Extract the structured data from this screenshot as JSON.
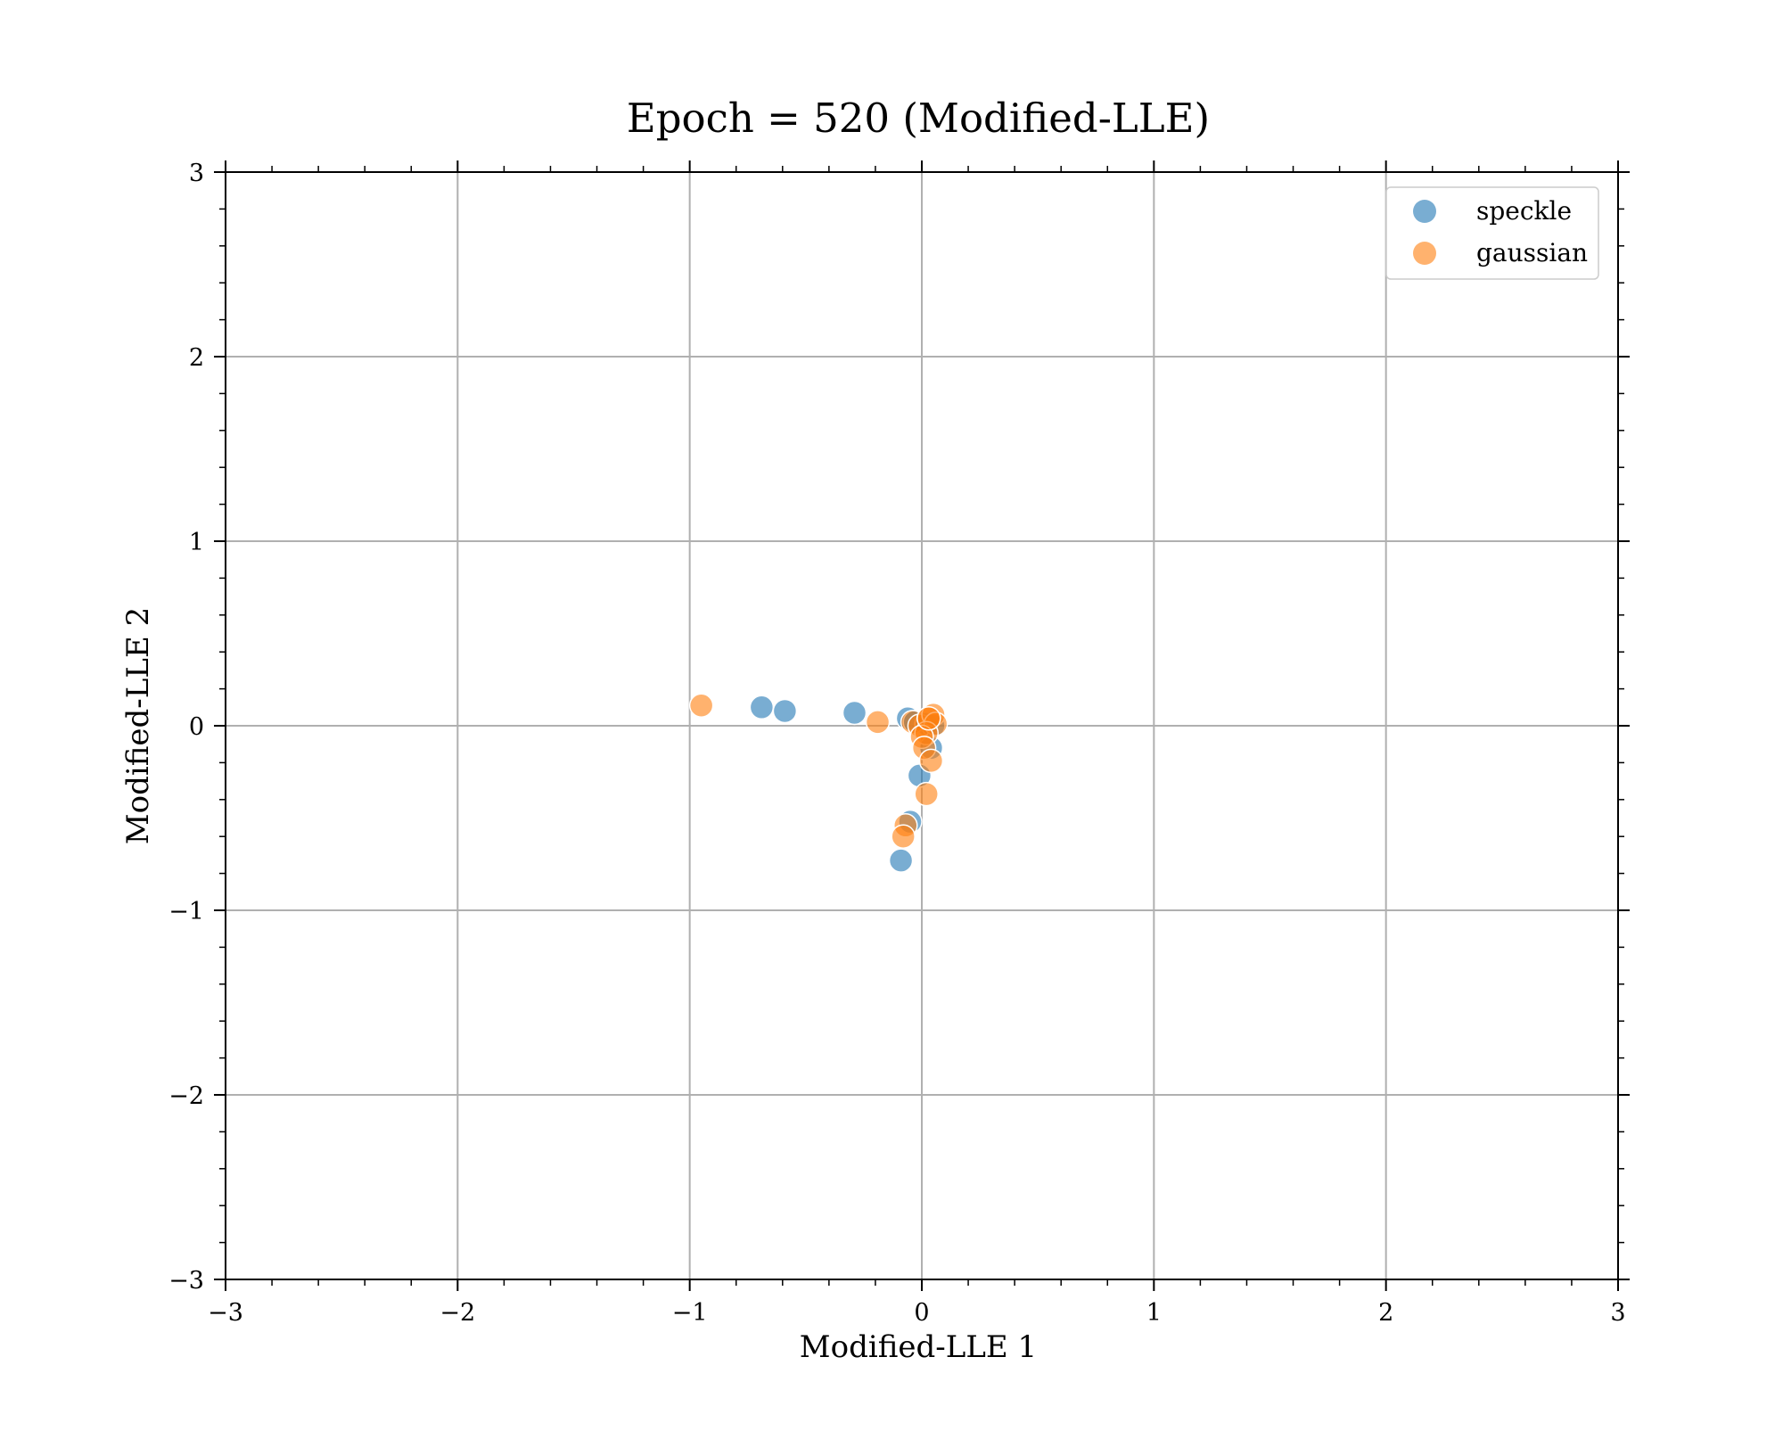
{
  "chart_data": {
    "type": "scatter",
    "title": "Epoch = 520 (Modified-LLE)",
    "xlabel": "Modified-LLE 1",
    "ylabel": "Modified-LLE 2",
    "xlim": [
      -3,
      3
    ],
    "ylim": [
      -3,
      3
    ],
    "xticks": [
      -3,
      -2,
      -1,
      0,
      1,
      2,
      3
    ],
    "yticks": [
      -3,
      -2,
      -1,
      0,
      1,
      2,
      3
    ],
    "xtick_labels": [
      "−3",
      "−2",
      "−1",
      "0",
      "1",
      "2",
      "3"
    ],
    "ytick_labels": [
      "−3",
      "−2",
      "−1",
      "0",
      "1",
      "2",
      "3"
    ],
    "grid": true,
    "legend_position": "top-right",
    "series": [
      {
        "name": "speckle",
        "color": "#1f77b4",
        "points": [
          [
            -0.69,
            0.1
          ],
          [
            -0.59,
            0.08
          ],
          [
            -0.29,
            0.07
          ],
          [
            -0.06,
            0.04
          ],
          [
            -0.03,
            0.02
          ],
          [
            0.02,
            0.01
          ],
          [
            0.05,
            0.0
          ],
          [
            0.04,
            -0.12
          ],
          [
            -0.01,
            -0.27
          ],
          [
            -0.05,
            -0.52
          ],
          [
            -0.09,
            -0.73
          ]
        ]
      },
      {
        "name": "gaussian",
        "color": "#ff7f0e",
        "points": [
          [
            -0.95,
            0.11
          ],
          [
            -0.19,
            0.02
          ],
          [
            -0.04,
            0.02
          ],
          [
            -0.01,
            0.0
          ],
          [
            0.03,
            0.04
          ],
          [
            0.05,
            0.06
          ],
          [
            0.06,
            0.01
          ],
          [
            0.02,
            -0.04
          ],
          [
            0.0,
            -0.06
          ],
          [
            0.01,
            -0.12
          ],
          [
            0.04,
            -0.19
          ],
          [
            0.02,
            -0.37
          ],
          [
            -0.07,
            -0.54
          ],
          [
            -0.08,
            -0.6
          ],
          [
            0.03,
            0.04
          ]
        ]
      }
    ]
  }
}
